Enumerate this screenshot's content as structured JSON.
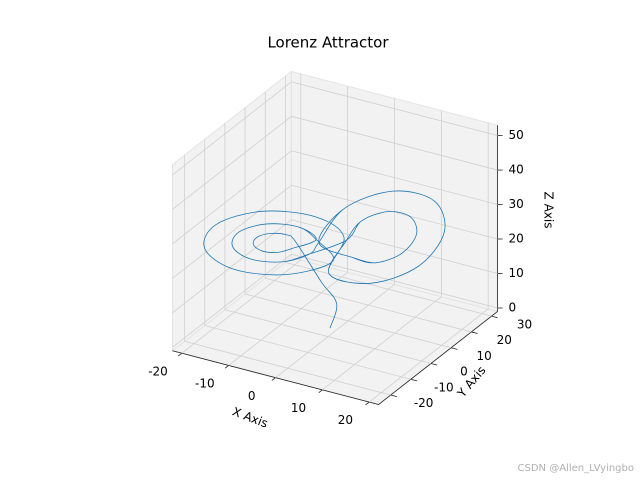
{
  "chart_data": {
    "type": "line3d",
    "title": "Lorenz Attractor",
    "xlabel": "X Axis",
    "ylabel": "Y Axis",
    "zlabel": "Z Axis",
    "xlim": [
      -22,
      22
    ],
    "ylim": [
      -26,
      33
    ],
    "zlim": [
      -1,
      53
    ],
    "xticks": [
      -20,
      -10,
      0,
      10,
      20
    ],
    "yticks": [
      -20,
      -10,
      0,
      10,
      20,
      30
    ],
    "zticks": [
      0,
      10,
      20,
      30,
      40,
      50
    ],
    "grid": true,
    "series": [
      {
        "color": "#1f77b4",
        "x": [
          0,
          1,
          -1,
          -5,
          -5.9,
          -8,
          -10.1,
          -11,
          -10.1,
          -8,
          -5.9,
          -2,
          -3.7,
          -8,
          -12.3,
          -14,
          -12.3,
          -8,
          -3.7,
          3,
          4.5,
          8,
          11.5,
          13,
          11.5,
          8,
          4.5,
          -1,
          1.6,
          8,
          14.4,
          17,
          14.4,
          8,
          1.6,
          2,
          -0.9,
          -8,
          -15.1,
          -18,
          -15.1,
          -8,
          -0.9,
          -2,
          -3.7,
          -8,
          -12.3,
          -14,
          -12.3,
          -8,
          -3.7,
          -1,
          1.6,
          8,
          14.4,
          17,
          14.4,
          8,
          1.6,
          3,
          4.5,
          8,
          11.5,
          13,
          11.5,
          8,
          4.5
        ],
        "y": [
          1,
          2,
          -1,
          -4.6,
          -6.9,
          -9.9,
          -11.7,
          -11.4,
          -9.1,
          -6.1,
          -4.3,
          -1.2,
          -5.8,
          -11.7,
          -15.5,
          -14.8,
          -10.2,
          -4.3,
          -0.5,
          2.3,
          6.2,
          11.1,
          14.2,
          13.7,
          9.8,
          4.9,
          1.8,
          -2.2,
          4.7,
          13.6,
          19.2,
          18.2,
          11.3,
          2.4,
          -3.2,
          3.3,
          -4.4,
          -14.2,
          -20.5,
          -19.3,
          -11.6,
          -1.8,
          4.5,
          -1.2,
          -5.8,
          -11.7,
          -15.5,
          -14.8,
          -10.2,
          -4.3,
          -0.5,
          -2.2,
          4.7,
          13.6,
          19.2,
          18.2,
          11.3,
          2.4,
          -3.2,
          2.3,
          6.2,
          11.1,
          14.2,
          13.7,
          9.8,
          4.9,
          1.8
        ],
        "z": [
          1,
          8,
          15,
          27,
          29.6,
          30.6,
          29.6,
          27,
          24.4,
          23.4,
          24.4,
          27,
          32.1,
          34.2,
          32.1,
          27,
          21.9,
          19.8,
          21.9,
          27,
          31.3,
          33,
          31.3,
          27,
          22.7,
          21,
          22.7,
          27,
          34.7,
          37.8,
          34.7,
          27,
          19.3,
          16.2,
          19.3,
          27,
          35.5,
          39,
          35.5,
          27,
          18.5,
          15,
          18.5,
          27,
          32.1,
          34.2,
          32.1,
          27,
          21.9,
          19.8,
          21.9,
          27,
          34.7,
          37.8,
          34.7,
          27,
          19.3,
          16.2,
          19.3,
          27,
          31.3,
          33,
          31.3,
          27,
          22.7,
          21,
          22.7
        ]
      }
    ]
  },
  "watermark": "CSDN @Allen_LVyingbo"
}
